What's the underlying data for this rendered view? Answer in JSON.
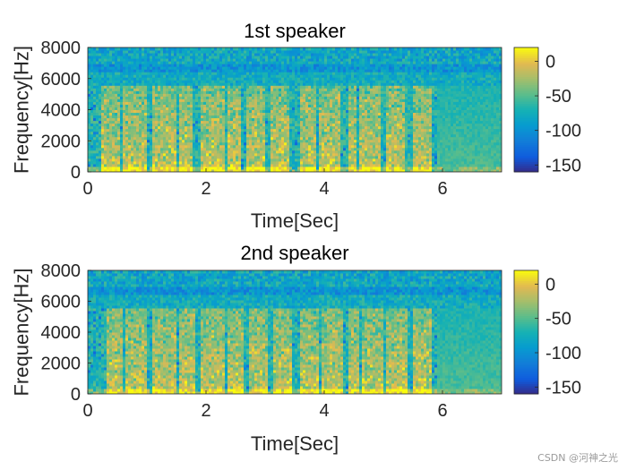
{
  "chart_data": [
    {
      "type": "heatmap",
      "title": "1st speaker",
      "xlabel": "Time[Sec]",
      "ylabel": "Frequency[Hz]",
      "xlim": [
        0,
        7
      ],
      "ylim": [
        0,
        8000
      ],
      "xticks": [
        "0",
        "2",
        "4",
        "6"
      ],
      "xtick_values": [
        0,
        2,
        4,
        6
      ],
      "yticks": [
        "0",
        "2000",
        "4000",
        "6000",
        "8000"
      ],
      "ytick_values": [
        0,
        2000,
        4000,
        6000,
        8000
      ],
      "colorbar": {
        "range": [
          -160,
          20
        ],
        "ticks": [
          "0",
          "-50",
          "-100",
          "-150"
        ],
        "tick_values": [
          0,
          -50,
          -100,
          -150
        ],
        "colormap": "parula"
      },
      "speech_bursts_sec": [
        [
          0.25,
          0.55
        ],
        [
          0.6,
          1.0
        ],
        [
          1.1,
          1.5
        ],
        [
          1.55,
          1.75
        ],
        [
          1.9,
          2.3
        ],
        [
          2.35,
          2.6
        ],
        [
          2.7,
          3.0
        ],
        [
          3.1,
          3.4
        ],
        [
          3.6,
          3.85
        ],
        [
          3.9,
          4.25
        ],
        [
          4.4,
          4.55
        ],
        [
          4.6,
          4.95
        ],
        [
          5.05,
          5.35
        ],
        [
          5.5,
          5.8
        ]
      ],
      "high_band_hz": [
        6500,
        7000
      ],
      "trailing_silence_sec": [
        5.9,
        7.0
      ]
    },
    {
      "type": "heatmap",
      "title": "2nd speaker",
      "xlabel": "Time[Sec]",
      "ylabel": "Frequency[Hz]",
      "xlim": [
        0,
        7
      ],
      "ylim": [
        0,
        8000
      ],
      "xticks": [
        "0",
        "2",
        "4",
        "6"
      ],
      "xtick_values": [
        0,
        2,
        4,
        6
      ],
      "yticks": [
        "0",
        "2000",
        "4000",
        "6000",
        "8000"
      ],
      "ytick_values": [
        0,
        2000,
        4000,
        6000,
        8000
      ],
      "colorbar": {
        "range": [
          -160,
          20
        ],
        "ticks": [
          "0",
          "-50",
          "-100",
          "-150"
        ],
        "tick_values": [
          0,
          -50,
          -100,
          -150
        ],
        "colormap": "parula"
      },
      "speech_bursts_sec": [
        [
          0.3,
          0.6
        ],
        [
          0.65,
          1.0
        ],
        [
          1.1,
          1.5
        ],
        [
          1.55,
          1.8
        ],
        [
          1.9,
          2.3
        ],
        [
          2.35,
          2.65
        ],
        [
          2.75,
          3.05
        ],
        [
          3.15,
          3.45
        ],
        [
          3.6,
          3.9
        ],
        [
          3.95,
          4.3
        ],
        [
          4.4,
          4.6
        ],
        [
          4.65,
          5.0
        ],
        [
          5.05,
          5.4
        ],
        [
          5.5,
          5.8
        ]
      ],
      "high_band_hz": [
        6500,
        7000
      ],
      "trailing_silence_sec": [
        5.9,
        7.0
      ]
    }
  ],
  "watermark": "CSDN @河神之光"
}
